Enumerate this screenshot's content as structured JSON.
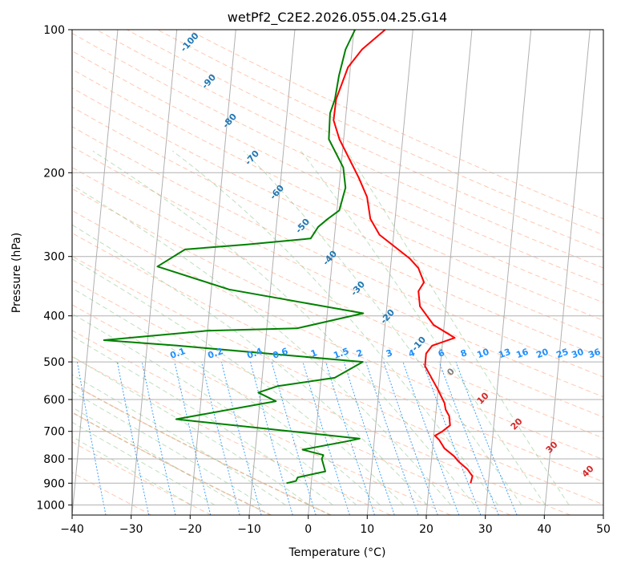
{
  "chart_data": {
    "type": "line",
    "title": "wetPf2_C2E2.2026.055.04.25.G14",
    "xlabel": "Temperature (°C)",
    "ylabel": "Pressure (hPa)",
    "xlim": [
      -40,
      50
    ],
    "ylim": [
      1050,
      100
    ],
    "y_scale": "log",
    "grid": true,
    "x_ticks": [
      -40,
      -30,
      -20,
      -10,
      0,
      10,
      20,
      30,
      40,
      50
    ],
    "y_ticks": [
      100,
      200,
      300,
      400,
      500,
      600,
      700,
      800,
      900,
      1000
    ],
    "colors": {
      "temperature": "#ff0000",
      "dewpoint": "#008000",
      "dry_adiabat_label": "#1f77b4",
      "mixing_ratio": "#1e90ff",
      "moist_adiabat_label": "#d62728",
      "zero_label": "#808080"
    },
    "series": [
      {
        "key": "temperature",
        "points": [
          [
            27.0,
            900
          ],
          [
            27.2,
            870
          ],
          [
            26.2,
            840
          ],
          [
            24.6,
            810
          ],
          [
            23.8,
            790
          ],
          [
            22.0,
            760
          ],
          [
            21.0,
            730
          ],
          [
            20.2,
            715
          ],
          [
            21.4,
            700
          ],
          [
            22.6,
            680
          ],
          [
            22.3,
            650
          ],
          [
            21.6,
            630
          ],
          [
            21.3,
            610
          ],
          [
            19.9,
            570
          ],
          [
            17.4,
            510
          ],
          [
            17.4,
            480
          ],
          [
            18.3,
            462
          ],
          [
            20.5,
            452
          ],
          [
            22.0,
            445
          ],
          [
            18.2,
            418
          ],
          [
            15.6,
            382
          ],
          [
            15.1,
            355
          ],
          [
            15.9,
            340
          ],
          [
            14.7,
            317
          ],
          [
            13.1,
            303
          ],
          [
            7.6,
            270
          ],
          [
            5.8,
            250
          ],
          [
            4.9,
            225
          ],
          [
            3.2,
            205
          ],
          [
            -0.7,
            170
          ],
          [
            -2.0,
            155
          ],
          [
            -1.9,
            140
          ],
          [
            -0.4,
            120
          ],
          [
            1.7,
            110
          ],
          [
            5.3,
            100
          ]
        ]
      },
      {
        "key": "dewpoint",
        "points": [
          [
            -4.2,
            900
          ],
          [
            -2.6,
            890
          ],
          [
            -2.4,
            875
          ],
          [
            2.2,
            850
          ],
          [
            1.4,
            800
          ],
          [
            1.6,
            785
          ],
          [
            -2.0,
            765
          ],
          [
            5.3,
            735
          ],
          [
            7.5,
            725
          ],
          [
            -23.9,
            660
          ],
          [
            -7.3,
            605
          ],
          [
            -10.4,
            580
          ],
          [
            -7.2,
            562
          ],
          [
            2.3,
            540
          ],
          [
            6.8,
            500
          ],
          [
            -24.9,
            462
          ],
          [
            -37.4,
            450
          ],
          [
            -20.1,
            430
          ],
          [
            -4.9,
            425
          ],
          [
            6.1,
            395
          ],
          [
            -17.0,
            352
          ],
          [
            -29.5,
            315
          ],
          [
            -25.1,
            290
          ],
          [
            -14.7,
            283
          ],
          [
            -4.0,
            275
          ],
          [
            -2.9,
            260
          ],
          [
            -1.4,
            250
          ],
          [
            0.4,
            240
          ],
          [
            1.1,
            215
          ],
          [
            0.4,
            195
          ],
          [
            -2.5,
            170
          ],
          [
            -2.7,
            150
          ],
          [
            -2.1,
            140
          ],
          [
            -1.8,
            125
          ],
          [
            -1.1,
            110
          ],
          [
            0.2,
            100
          ]
        ]
      }
    ],
    "dry_adiabat_labels": [
      "-100",
      "-90",
      "-80",
      "-70",
      "-60",
      "-50",
      "-40",
      "-30",
      "-20",
      "-10"
    ],
    "mixing_ratio_labels": [
      "0.1",
      "0.2",
      "0.4",
      "0.6",
      "1",
      "1.5",
      "2",
      "3",
      "4",
      "6",
      "8",
      "10",
      "13",
      "16",
      "20",
      "25",
      "30",
      "36"
    ],
    "moist_adiabat_labels": [
      "0",
      "10",
      "20",
      "30",
      "40"
    ]
  }
}
